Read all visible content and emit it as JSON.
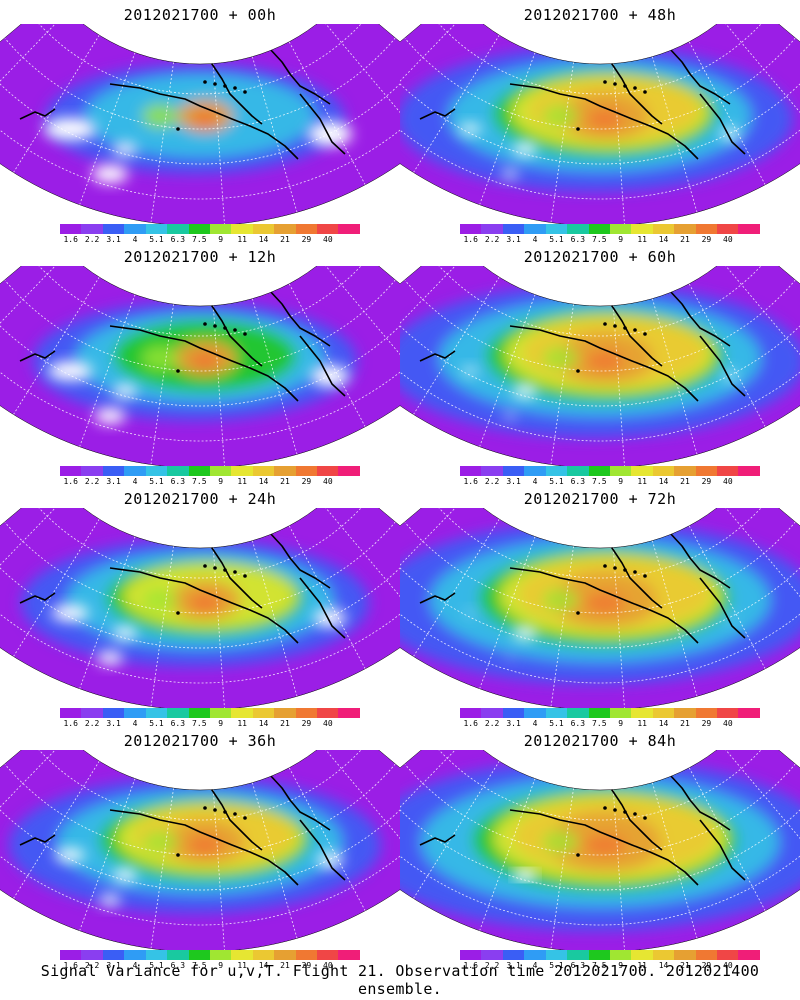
{
  "colorbar": {
    "colors": [
      "#9b1ee6",
      "#8a3ef0",
      "#3a5ef5",
      "#2f9cf5",
      "#35c3e6",
      "#19c9a0",
      "#1ec81e",
      "#a0e632",
      "#e6e632",
      "#ebc832",
      "#e6a032",
      "#f07832",
      "#f04646",
      "#f01e78"
    ],
    "labels": [
      "1.6",
      "2.2",
      "3.1",
      "4",
      "5.1",
      "6.3",
      "7.5",
      "9",
      "11",
      "14",
      "21",
      "29",
      "40"
    ]
  },
  "panels": [
    {
      "title": "2012021700 + 00h",
      "intensity": 0
    },
    {
      "title": "2012021700 + 48h",
      "intensity": 4
    },
    {
      "title": "2012021700 + 12h",
      "intensity": 1
    },
    {
      "title": "2012021700 + 60h",
      "intensity": 5
    },
    {
      "title": "2012021700 + 24h",
      "intensity": 2
    },
    {
      "title": "2012021700 + 72h",
      "intensity": 6
    },
    {
      "title": "2012021700 + 36h",
      "intensity": 3
    },
    {
      "title": "2012021700 + 84h",
      "intensity": 7
    }
  ],
  "footer": "Signal Variance for u,v,T. Flight 21. Observation time 2012021700. 2012021400 ensemble."
}
